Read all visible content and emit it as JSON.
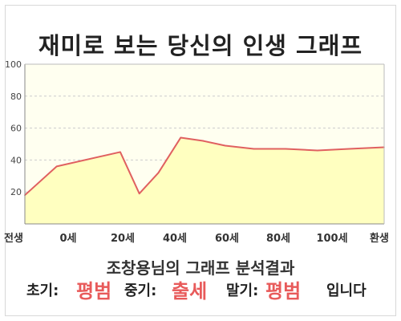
{
  "page": {
    "title": "재미로 보는 당신의 인생 그래프",
    "analysis_title": "조창용님의 그래프 분석결과",
    "result": {
      "early_label": "초기:",
      "early_value": "평범",
      "mid_label": "중기:",
      "mid_value": "출세",
      "late_label": "말기:",
      "late_value": "평범",
      "ending": "입니다"
    }
  },
  "chart_data": {
    "type": "area",
    "title": "재미로 보는 당신의 인생 그래프",
    "xlabel": "",
    "ylabel": "",
    "ylim": [
      0,
      100
    ],
    "yticks": [
      20,
      40,
      60,
      80,
      100
    ],
    "xticks": [
      "전생",
      "0세",
      "20세",
      "40세",
      "60세",
      "80세",
      "100세",
      "환생"
    ],
    "grid": true,
    "colors": {
      "line": "#e06060",
      "fill": "#ffffc0",
      "plot_bg": "#fffff0",
      "grid": "#cccccc"
    },
    "points": [
      {
        "x": -10,
        "y": 18
      },
      {
        "x": 0,
        "y": 36
      },
      {
        "x": 20,
        "y": 45
      },
      {
        "x": 26,
        "y": 19
      },
      {
        "x": 32,
        "y": 32
      },
      {
        "x": 39,
        "y": 54
      },
      {
        "x": 46,
        "y": 52
      },
      {
        "x": 53,
        "y": 49
      },
      {
        "x": 62,
        "y": 47
      },
      {
        "x": 72,
        "y": 47
      },
      {
        "x": 82,
        "y": 46
      },
      {
        "x": 92,
        "y": 47
      },
      {
        "x": 103,
        "y": 48
      }
    ]
  }
}
